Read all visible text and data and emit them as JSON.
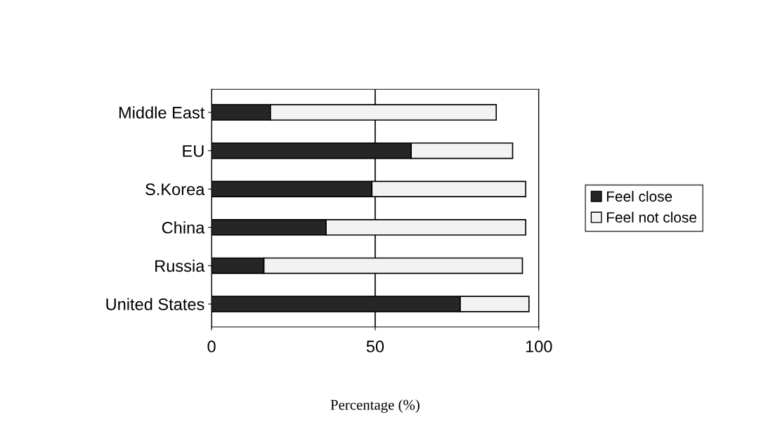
{
  "chart_data": {
    "type": "bar",
    "orientation": "horizontal",
    "stacked": true,
    "categories": [
      "Middle East",
      "EU",
      "S.Korea",
      "China",
      "Russia",
      "United States"
    ],
    "series": [
      {
        "name": "Feel close",
        "color": "#262626",
        "values": [
          18,
          61,
          49,
          35,
          16,
          76
        ]
      },
      {
        "name": "Feel not close",
        "color": "#f2f2f2",
        "values": [
          69,
          31,
          47,
          61,
          79,
          21
        ]
      }
    ],
    "xlabel": "Percentage (%)",
    "xlim": [
      0,
      100
    ],
    "xticks": [
      0,
      50,
      100
    ],
    "grid": "x",
    "legend": "right"
  }
}
